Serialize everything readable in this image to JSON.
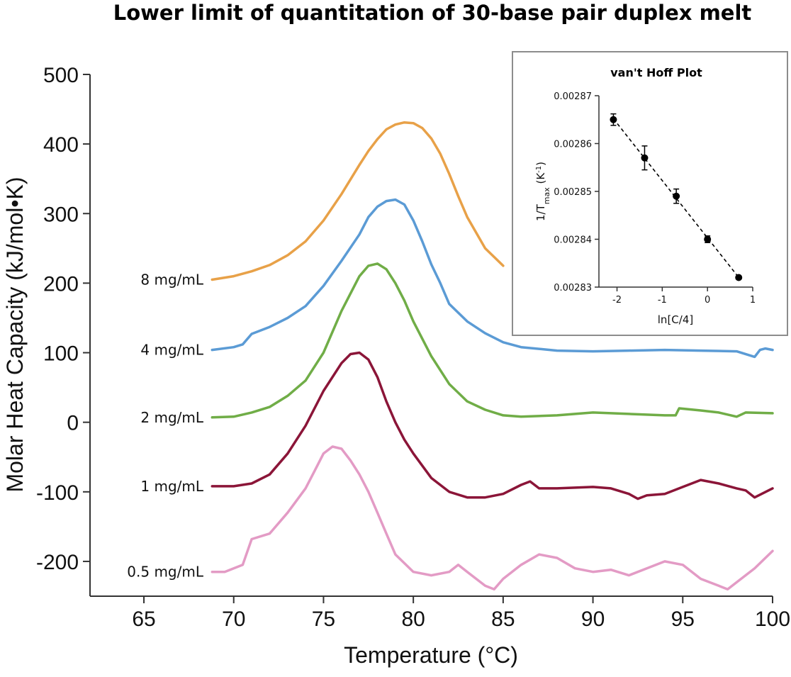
{
  "chart_data": [
    {
      "type": "line",
      "title": "Lower limit of quantitation of 30-base pair duplex melt",
      "xlabel": "Temperature (°C)",
      "ylabel": "Molar Heat Capacity (kJ/mol•K)",
      "xlim": [
        62,
        100
      ],
      "ylim": [
        -250,
        500
      ],
      "xticks": [
        65,
        70,
        75,
        80,
        85,
        90,
        95,
        100
      ],
      "yticks": [
        -200,
        -100,
        0,
        100,
        200,
        300,
        400,
        500
      ],
      "grid": false,
      "series": [
        {
          "name": "8 mg/mL",
          "color": "#E8A148",
          "x": [
            68.8,
            70,
            71,
            72,
            73,
            74,
            75,
            76,
            77,
            77.5,
            78,
            78.5,
            79,
            79.5,
            80,
            80.5,
            81,
            81.5,
            82,
            82.5,
            83,
            84,
            85
          ],
          "y": [
            205,
            210,
            217,
            226,
            240,
            260,
            290,
            328,
            370,
            390,
            407,
            421,
            428,
            431,
            430,
            423,
            408,
            386,
            357,
            325,
            295,
            250,
            225
          ]
        },
        {
          "name": "4 mg/mL",
          "color": "#5B9BD5",
          "x": [
            68.8,
            70,
            70.5,
            71,
            72,
            73,
            74,
            75,
            76,
            77,
            77.5,
            78,
            78.5,
            79,
            79.5,
            80,
            80.5,
            81,
            81.5,
            82,
            83,
            84,
            85,
            86,
            88,
            90,
            92,
            94,
            96,
            98,
            99,
            99.3,
            99.6,
            100
          ],
          "y": [
            104,
            108,
            112,
            127,
            137,
            150,
            167,
            196,
            232,
            270,
            295,
            310,
            318,
            320,
            313,
            290,
            260,
            227,
            200,
            170,
            145,
            128,
            115,
            108,
            103,
            102,
            103,
            104,
            103,
            102,
            94,
            104,
            106,
            104
          ]
        },
        {
          "name": "2 mg/mL",
          "color": "#70AD47",
          "x": [
            68.8,
            70,
            71,
            72,
            73,
            74,
            75,
            76,
            77,
            77.5,
            78,
            78.5,
            79,
            79.5,
            80,
            81,
            82,
            83,
            84,
            85,
            86,
            88,
            90,
            92,
            94,
            94.6,
            94.8,
            96,
            97,
            98,
            98.5,
            100
          ],
          "y": [
            7,
            8,
            14,
            22,
            38,
            60,
            100,
            160,
            210,
            225,
            228,
            220,
            200,
            175,
            145,
            95,
            55,
            30,
            18,
            10,
            8,
            10,
            14,
            12,
            10,
            10,
            20,
            17,
            14,
            8,
            14,
            13
          ]
        },
        {
          "name": "1 mg/mL",
          "color": "#8B1538",
          "x": [
            68.8,
            70,
            71,
            72,
            73,
            74,
            75,
            76,
            76.5,
            77,
            77.5,
            78,
            78.5,
            79,
            79.5,
            80,
            81,
            82,
            83,
            84,
            85,
            86,
            86.5,
            87,
            88,
            90,
            91,
            92,
            92.5,
            93,
            94,
            95,
            96,
            97,
            98,
            98.5,
            99,
            100
          ],
          "y": [
            -92,
            -92,
            -88,
            -75,
            -45,
            -5,
            45,
            85,
            98,
            100,
            90,
            65,
            30,
            0,
            -25,
            -45,
            -80,
            -100,
            -108,
            -108,
            -103,
            -90,
            -85,
            -95,
            -95,
            -93,
            -95,
            -103,
            -110,
            -105,
            -103,
            -93,
            -83,
            -88,
            -95,
            -98,
            -108,
            -95
          ]
        },
        {
          "name": "0.5 mg/mL",
          "color": "#E39BC5",
          "x": [
            68.8,
            69.5,
            70.5,
            71,
            72,
            73,
            74,
            74.5,
            75,
            75.5,
            76,
            76.5,
            77,
            77.5,
            78,
            78.5,
            79,
            80,
            81,
            82,
            82.5,
            83,
            84,
            84.5,
            85,
            86,
            87,
            88,
            89,
            90,
            91,
            92,
            93,
            94,
            95,
            96,
            97,
            97.5,
            98,
            99,
            100
          ],
          "y": [
            -215,
            -215,
            -205,
            -168,
            -160,
            -130,
            -95,
            -70,
            -45,
            -35,
            -38,
            -55,
            -75,
            -100,
            -130,
            -160,
            -190,
            -215,
            -220,
            -215,
            -205,
            -215,
            -235,
            -240,
            -225,
            -205,
            -190,
            -195,
            -210,
            -215,
            -212,
            -220,
            -210,
            -200,
            -205,
            -225,
            -235,
            -240,
            -230,
            -210,
            -185
          ]
        }
      ]
    },
    {
      "type": "scatter",
      "title": "van't Hoff Plot",
      "xlabel": "ln[C/4]",
      "ylabel": "1/Tmax (K-1)",
      "ylabel_main": "1/T",
      "ylabel_sub": "max",
      "ylabel_tail": " (K",
      "ylabel_sup": "-1",
      "ylabel_close": ")",
      "xlim": [
        -2.4,
        1
      ],
      "ylim": [
        0.00283,
        0.00287
      ],
      "xticks": [
        -2,
        -1,
        0,
        1
      ],
      "yticks": [
        "0.00283",
        "0.00284",
        "0.00285",
        "0.00286",
        "0.00287"
      ],
      "fit_line": "dashed",
      "points": [
        {
          "x": -2.08,
          "y": 0.002865,
          "err": 1.2e-06
        },
        {
          "x": -1.39,
          "y": 0.002857,
          "err": 2.5e-06
        },
        {
          "x": -0.69,
          "y": 0.002849,
          "err": 1.5e-06
        },
        {
          "x": 0.0,
          "y": 0.00284,
          "err": 7e-07
        },
        {
          "x": 0.69,
          "y": 0.002832,
          "err": 3e-07
        }
      ]
    }
  ]
}
